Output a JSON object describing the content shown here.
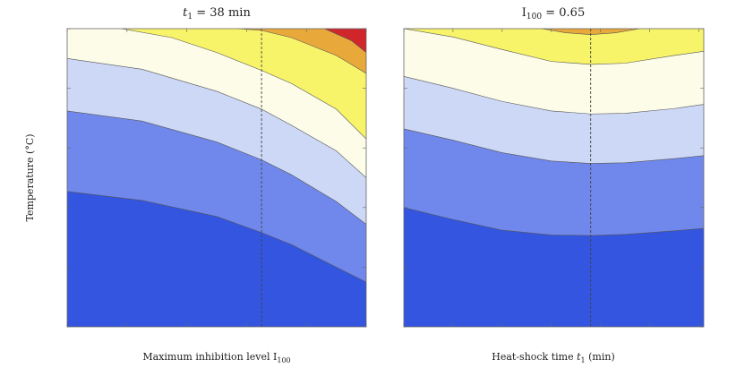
{
  "colors": {
    "band_below_0_5": "#3355e0",
    "band_0_5_1": "#7088ec",
    "band_1_1_5": "#cdd8f6",
    "band_1_5_2": "#fcfce8",
    "band_2_2_5": "#f8f46a",
    "band_2_5_3": "#e8a83a",
    "band_above_3": "#d0262b",
    "contour_line": "#555555",
    "reference_line": "#444444"
  },
  "chart_data": [
    {
      "type": "contour",
      "title_math": "t",
      "title_sub": "1",
      "title_rest": " = 38 min",
      "xlabel": "Maximum inhibition level I",
      "xlabel_sub": "100",
      "ylabel": "Temperature (°C)",
      "xlim": [
        0,
        1
      ],
      "ylim": [
        37,
        42
      ],
      "xticks": [
        "0.0",
        "0.2",
        "0.4",
        "0.6",
        "0.8",
        "1.0"
      ],
      "xtick_values": [
        0,
        0.2,
        0.4,
        0.6,
        0.8,
        1.0
      ],
      "yticks": [
        "37",
        "38",
        "39",
        "40",
        "41",
        "42"
      ],
      "ytick_values": [
        37,
        38,
        39,
        40,
        41,
        42
      ],
      "reference_x": 0.65,
      "grid": false,
      "contours": [
        {
          "level": "0.5",
          "x": [
            0,
            0.25,
            0.5,
            0.65,
            0.75,
            0.9,
            1.0
          ],
          "y": [
            39.27,
            39.12,
            38.85,
            38.58,
            38.38,
            38.0,
            37.75
          ],
          "label_x": 0.985,
          "label_y": 37.75
        },
        {
          "level": "1",
          "x": [
            0,
            0.25,
            0.5,
            0.65,
            0.75,
            0.9,
            1.0
          ],
          "y": [
            40.62,
            40.45,
            40.1,
            39.8,
            39.55,
            39.1,
            38.72
          ],
          "label_x": 0.04,
          "label_y": 40.58
        },
        {
          "level": "1.5",
          "x": [
            0,
            0.25,
            0.5,
            0.65,
            0.75,
            0.9,
            1.0
          ],
          "y": [
            41.5,
            41.32,
            40.95,
            40.65,
            40.38,
            39.95,
            39.5
          ],
          "label_x": 0.01,
          "label_y": 41.5
        },
        {
          "level": "2",
          "x": [
            0.18,
            0.35,
            0.5,
            0.65,
            0.75,
            0.9,
            1.0
          ],
          "y": [
            42.0,
            41.85,
            41.6,
            41.3,
            41.08,
            40.65,
            40.15
          ],
          "label_x": 0.25,
          "label_y": 41.96
        },
        {
          "level": "2.5",
          "x": [
            0.57,
            0.65,
            0.75,
            0.9,
            1.0
          ],
          "y": [
            42.0,
            41.97,
            41.85,
            41.55,
            41.25
          ],
          "label_x": 0.655,
          "label_y": 41.93
        },
        {
          "level": "3",
          "x": [
            0.86,
            0.95,
            1.0
          ],
          "y": [
            42.0,
            41.8,
            41.6
          ],
          "label_x": 0.905,
          "label_y": 41.93
        }
      ]
    },
    {
      "type": "contour",
      "title_math": "I",
      "title_sub": "100",
      "title_rest": " = 0.65",
      "xlabel": "Heat-shock time ",
      "xlabel_var": "t",
      "xlabel_sub": "1",
      "xlabel_rest": " (min)",
      "xlim": [
        0,
        61
      ],
      "ylim": [
        37,
        42
      ],
      "xticks": [
        "0",
        "10",
        "20",
        "30",
        "40",
        "50",
        "60"
      ],
      "xtick_values": [
        0,
        10,
        20,
        30,
        40,
        50,
        60
      ],
      "yticks": [
        "37",
        "38",
        "39",
        "40",
        "41",
        "42"
      ],
      "ytick_values": [
        37,
        38,
        39,
        40,
        41,
        42
      ],
      "reference_x": 38,
      "grid": false,
      "contours": [
        {
          "level": "0.5",
          "x": [
            0,
            10,
            20,
            30,
            38,
            45,
            55,
            61
          ],
          "y": [
            39.0,
            38.8,
            38.62,
            38.54,
            38.53,
            38.55,
            38.61,
            38.65
          ],
          "label_x": 0.3,
          "label_y": 38.99
        },
        {
          "level": "1",
          "x": [
            0,
            10,
            20,
            30,
            38,
            45,
            55,
            61
          ],
          "y": [
            40.32,
            40.13,
            39.92,
            39.78,
            39.74,
            39.75,
            39.82,
            39.87
          ],
          "label_x": 59,
          "label_y": 39.85
        },
        {
          "level": "1.5",
          "x": [
            0,
            10,
            20,
            30,
            38,
            45,
            55,
            61
          ],
          "y": [
            41.2,
            41.0,
            40.78,
            40.62,
            40.57,
            40.58,
            40.66,
            40.73
          ],
          "label_x": 27,
          "label_y": 40.62
        },
        {
          "level": "2",
          "x": [
            0,
            10,
            20,
            30,
            38,
            45,
            55,
            61
          ],
          "y": [
            42.0,
            41.86,
            41.65,
            41.45,
            41.4,
            41.42,
            41.55,
            41.62
          ],
          "label_x": 19,
          "label_y": 41.7
        },
        {
          "level": "2.5",
          "x": [
            28,
            33,
            38,
            43,
            48
          ],
          "y": [
            42.0,
            41.93,
            41.9,
            41.93,
            42.0
          ],
          "label_x": 44,
          "label_y": 41.93
        }
      ]
    }
  ]
}
